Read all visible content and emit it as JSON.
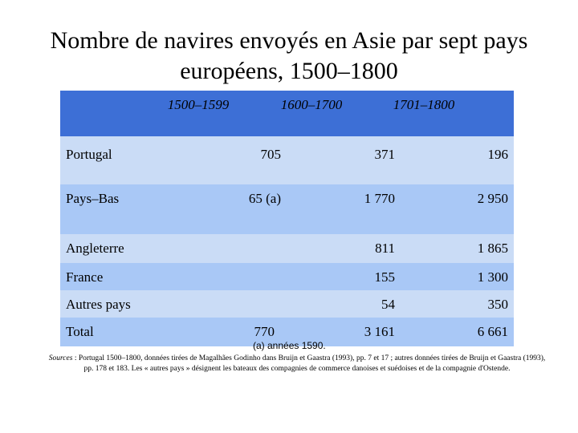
{
  "title": "Nombre de navires envoyés en Asie par sept pays européens, 1500–1800",
  "table": {
    "columns": [
      "1500–1599",
      "1600–1700",
      "1701–1800"
    ],
    "rows": [
      {
        "label": "Portugal",
        "values": [
          "705",
          "371",
          "196"
        ]
      },
      {
        "label": "Pays–Bas",
        "values": [
          "65 (a)",
          "1 770",
          "2 950"
        ]
      },
      {
        "label": "Angleterre",
        "values": [
          null,
          "811",
          "1 865"
        ]
      },
      {
        "label": "France",
        "values": [
          null,
          "155",
          "1 300"
        ]
      },
      {
        "label": "Autres pays",
        "values": [
          null,
          "54",
          "350"
        ]
      },
      {
        "label": "Total",
        "values": [
          "770",
          "3 161",
          "6 661"
        ]
      }
    ],
    "note": "(a) années 1590."
  },
  "sources": {
    "label": "Sources",
    "text": " : Portugal 1500–1800, données tirées de Magalhães Godinho dans Bruijn et Gaastra (1993), pp. 7 et 17 ; autres données tirées de Bruijn et Gaastra (1993), pp. 178 et 183. Les « autres pays » désignent les bateaux des compagnies de commerce danoises et suédoises et de la compagnie d'Ostende."
  }
}
